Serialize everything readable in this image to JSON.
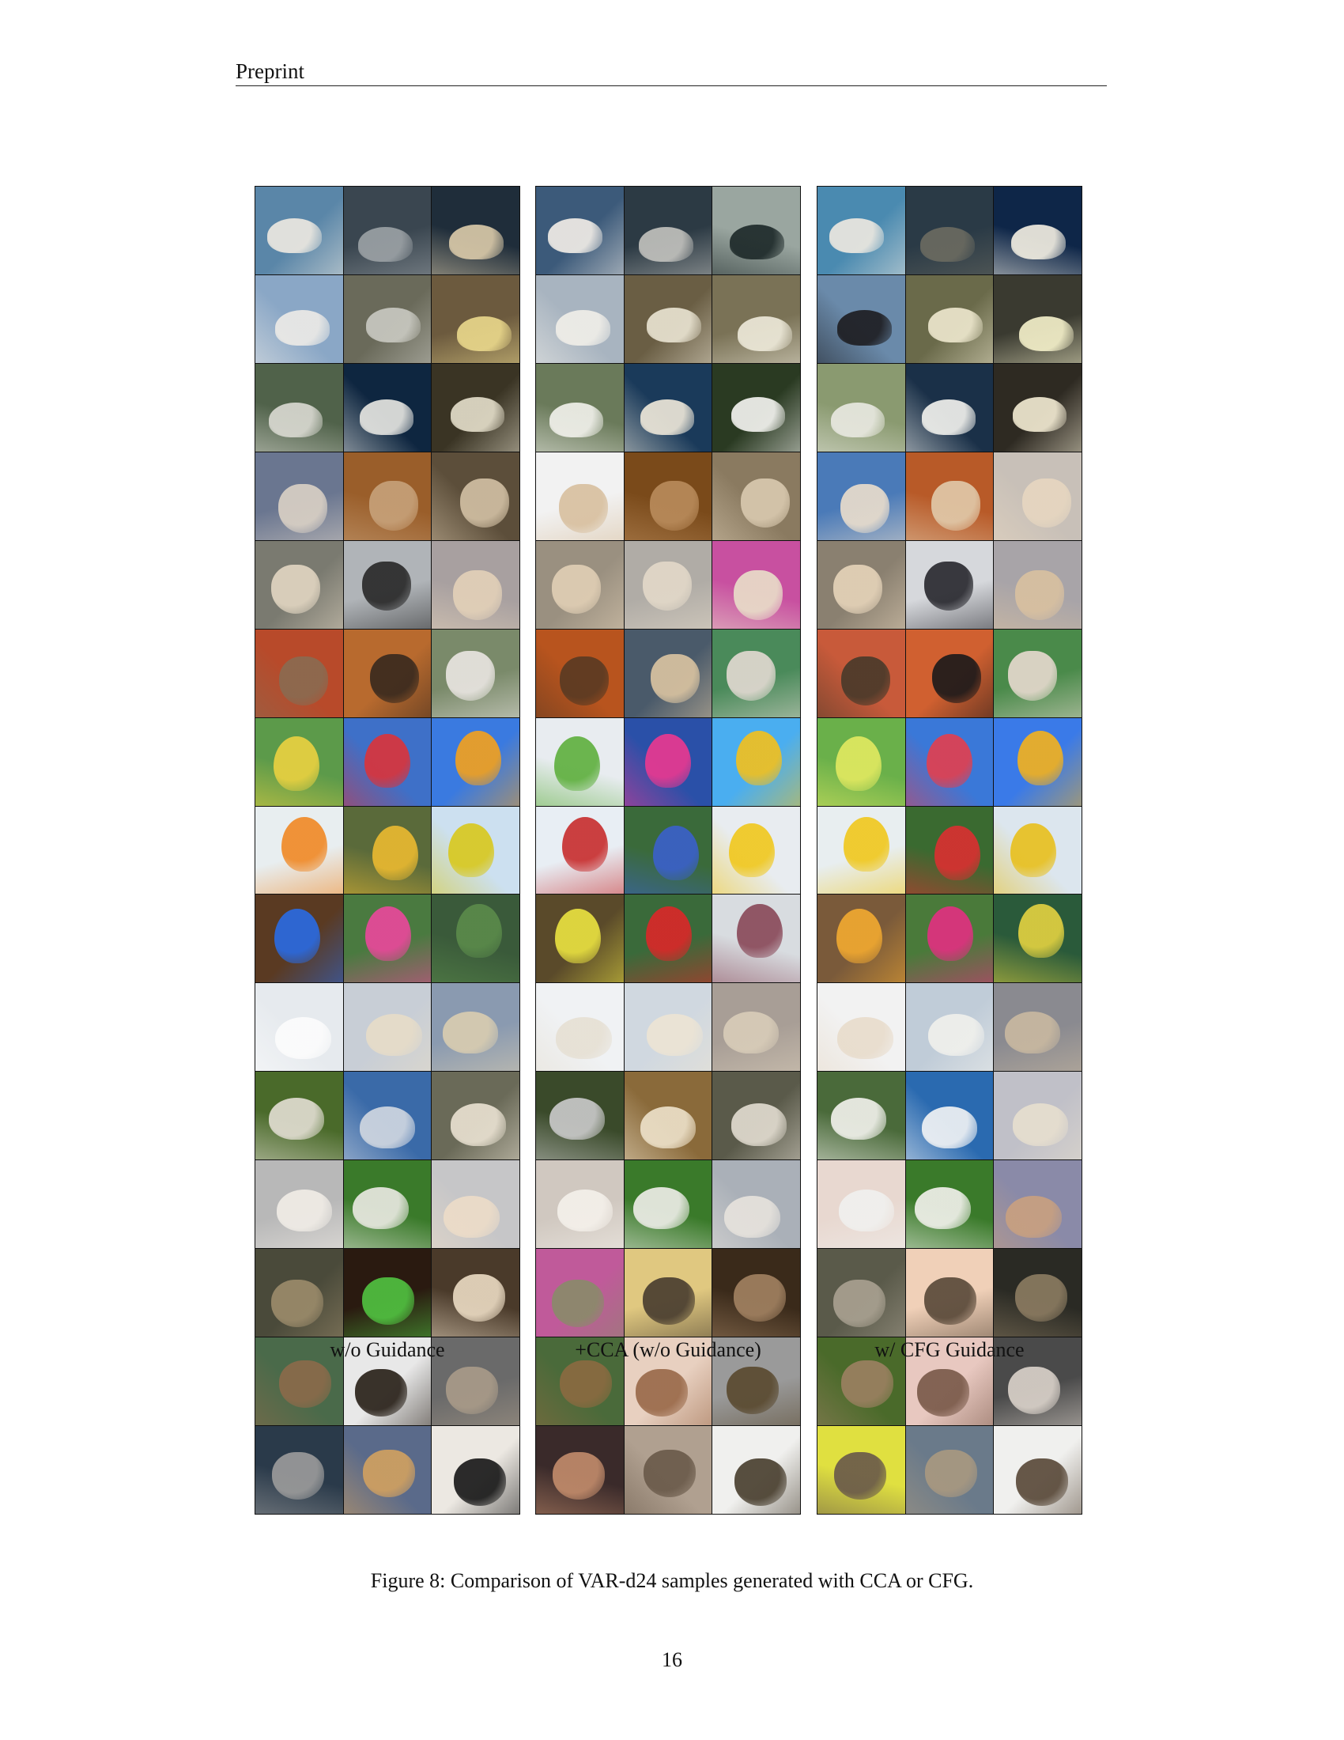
{
  "header": {
    "running_head": "Preprint"
  },
  "figure": {
    "panels": [
      {
        "caption": "w/o Guidance",
        "tiles": [
          [
            "#5a86a8",
            "#ece8e0",
            "albatross"
          ],
          [
            "#3a4650",
            "#9aa0a4",
            "albatross"
          ],
          [
            "#1f2d3a",
            "#d8c8a8",
            "albatross"
          ],
          [
            "#8aa7c6",
            "#eceae6",
            "albatross"
          ],
          [
            "#6a6a5a",
            "#c8c8c0",
            "albatross"
          ],
          [
            "#6c5a3e",
            "#e8d68a",
            "albatross"
          ],
          [
            "#50624a",
            "#d8d8d0",
            "albatross"
          ],
          [
            "#0e2640",
            "#e4e4e0",
            "albatross"
          ],
          [
            "#3a3424",
            "#e2dcc8",
            "albatross"
          ],
          [
            "#6a7690",
            "#d8cfc4",
            "siamese cat"
          ],
          [
            "#9a5e2a",
            "#c6a078",
            "siamese cat"
          ],
          [
            "#5c4e3a",
            "#d0bea2",
            "siamese cat"
          ],
          [
            "#7a7a70",
            "#e0d4c0",
            "siamese cat"
          ],
          [
            "#b0b4b8",
            "#2a2a2a",
            "siamese cat"
          ],
          [
            "#a8a0a0",
            "#e2d0b8",
            "siamese cat"
          ],
          [
            "#b84a2a",
            "#8a6a50",
            "siamese cat"
          ],
          [
            "#b86a2e",
            "#3a2a1e",
            "siamese cat"
          ],
          [
            "#7a8a6a",
            "#e8e4e0",
            "siamese cat"
          ],
          [
            "#5c9a4a",
            "#e8d040",
            "hot-air balloon"
          ],
          [
            "#3e70c8",
            "#d8343c",
            "hot-air balloon"
          ],
          [
            "#3a7ae0",
            "#f0a020",
            "hot-air balloon"
          ],
          [
            "#e8eef0",
            "#f08a28",
            "hot-air balloon"
          ],
          [
            "#5a6a3a",
            "#e8b830",
            "hot-air balloon"
          ],
          [
            "#cce0f0",
            "#d8c820",
            "hot-air balloon"
          ],
          [
            "#5a3a22",
            "#2a6ae0",
            "hot-air balloon"
          ],
          [
            "#4a7a40",
            "#e8489a",
            "hot-air balloon"
          ],
          [
            "#3a5a3a",
            "#5a8a4a",
            "hot-air balloon"
          ],
          [
            "#e6eaee",
            "#fcfcfc",
            "white wolf"
          ],
          [
            "#c8ced6",
            "#e6dcc8",
            "white wolf"
          ],
          [
            "#8a9ab0",
            "#d8ccb0",
            "white wolf"
          ],
          [
            "#4a6a2a",
            "#e0dcd0",
            "white wolf"
          ],
          [
            "#3a6aa8",
            "#cfd6e0",
            "white wolf"
          ],
          [
            "#6a6a58",
            "#e8e0d0",
            "white wolf"
          ],
          [
            "#b8b8b8",
            "#f0ece6",
            "white wolf"
          ],
          [
            "#3a7a2a",
            "#e8e8e0",
            "white wolf"
          ],
          [
            "#c6c6c8",
            "#ecdcc8",
            "white wolf"
          ],
          [
            "#4a4a3a",
            "#9a8a6a",
            "tabby cat"
          ],
          [
            "#2a1a10",
            "#50c040",
            "tabby cat"
          ],
          [
            "#4a3a2a",
            "#e8d8c0",
            "tabby cat"
          ],
          [
            "#4a6a4a",
            "#8a6a4a",
            "tabby cat"
          ],
          [
            "#e8e8e8",
            "#2a221a",
            "tabby cat"
          ],
          [
            "#6a6a6a",
            "#a89a88",
            "tabby cat"
          ],
          [
            "#2a3a4a",
            "#9a9a9a",
            "tabby cat"
          ],
          [
            "#5a6a8a",
            "#d0a060",
            "tabby cat"
          ],
          [
            "#ece8e2",
            "#1a1a1a",
            "tabby cat"
          ]
        ]
      },
      {
        "caption": "+CCA (w/o Guidance)",
        "tiles": [
          [
            "#3c5a7a",
            "#f0ece6",
            "albatross"
          ],
          [
            "#2c3a44",
            "#c0c0bc",
            "albatross"
          ],
          [
            "#9aa6a0",
            "#1e2a2a",
            "albatross"
          ],
          [
            "#a8b4c0",
            "#f0eee8",
            "albatross"
          ],
          [
            "#6a5e44",
            "#e8e2d0",
            "albatross"
          ],
          [
            "#7a7256",
            "#ece8d8",
            "albatross"
          ],
          [
            "#6a7a5a",
            "#f0f0ea",
            "albatross"
          ],
          [
            "#1a3a5a",
            "#ece6d8",
            "albatross"
          ],
          [
            "#2a3a22",
            "#f2f2ee",
            "albatross"
          ],
          [
            "#f2f2f2",
            "#d8c0a0",
            "siamese cat"
          ],
          [
            "#7a4a1a",
            "#b88a5a",
            "siamese cat"
          ],
          [
            "#8a7a60",
            "#d8c8ae",
            "siamese cat"
          ],
          [
            "#9a9080",
            "#e0ceb4",
            "siamese cat"
          ],
          [
            "#b0aca6",
            "#e2d8c8",
            "siamese cat"
          ],
          [
            "#c850a0",
            "#e8dcc8",
            "siamese cat"
          ],
          [
            "#b8541e",
            "#5a3a22",
            "siamese cat"
          ],
          [
            "#4a5a6a",
            "#d8c2a0",
            "siamese cat"
          ],
          [
            "#4a8a5a",
            "#e0d8d0",
            "siamese cat"
          ],
          [
            "#e8ecf0",
            "#60b040",
            "hot-air balloon"
          ],
          [
            "#2a50a8",
            "#e83890",
            "hot-air balloon"
          ],
          [
            "#4aaef0",
            "#f0c020",
            "hot-air balloon"
          ],
          [
            "#e8eef4",
            "#c83030",
            "hot-air balloon"
          ],
          [
            "#3a6a3a",
            "#3a60c8",
            "hot-air balloon"
          ],
          [
            "#e8ecf0",
            "#f0c820",
            "hot-air balloon"
          ],
          [
            "#5a4a2a",
            "#e8e040",
            "hot-air balloon"
          ],
          [
            "#3a6a3a",
            "#d82828",
            "hot-air balloon"
          ],
          [
            "#d8dce0",
            "#8a4a5a",
            "hot-air balloon"
          ],
          [
            "#f0f2f4",
            "#e6e0d4",
            "white wolf"
          ],
          [
            "#d0d8e0",
            "#ece4d4",
            "white wolf"
          ],
          [
            "#a89e96",
            "#d8ccb8",
            "white wolf"
          ],
          [
            "#3a4a2a",
            "#c8c8c8",
            "white wolf"
          ],
          [
            "#8a6a3a",
            "#ece0c8",
            "white wolf"
          ],
          [
            "#5a5a4a",
            "#e0dace",
            "white wolf"
          ],
          [
            "#d0c8c0",
            "#f4f0ea",
            "white wolf"
          ],
          [
            "#3a7a2a",
            "#ecece6",
            "white wolf"
          ],
          [
            "#aab0b8",
            "#e6e2dc",
            "white wolf"
          ],
          [
            "#c05a9a",
            "#8a8a6a",
            "tabby cat"
          ],
          [
            "#e0c880",
            "#4a3e30",
            "tabby cat"
          ],
          [
            "#3a2a1a",
            "#a08060",
            "tabby cat"
          ],
          [
            "#4a6a3a",
            "#8a6a40",
            "tabby cat"
          ],
          [
            "#e8d0c0",
            "#9a6a4a",
            "tabby cat"
          ],
          [
            "#9a9a9a",
            "#5a4a30",
            "tabby cat"
          ],
          [
            "#3a2a2a",
            "#c08a6a",
            "tabby cat"
          ],
          [
            "#b0a090",
            "#6a5a4a",
            "tabby cat"
          ],
          [
            "#f0f0ee",
            "#4a4030",
            "tabby cat"
          ]
        ]
      },
      {
        "caption": "w/ CFG Guidance",
        "tiles": [
          [
            "#4a8ab0",
            "#ece8e0",
            "albatross"
          ],
          [
            "#2a3a46",
            "#6a6a60",
            "albatross"
          ],
          [
            "#0e2648",
            "#f0ece0",
            "albatross"
          ],
          [
            "#6a8aaa",
            "#1e1e22",
            "albatross"
          ],
          [
            "#6a6a4a",
            "#ece6cc",
            "albatross"
          ],
          [
            "#3a3a30",
            "#f2eec8",
            "albatross"
          ],
          [
            "#8a9a70",
            "#e8e8e0",
            "albatross"
          ],
          [
            "#1a3048",
            "#f0f0ec",
            "albatross"
          ],
          [
            "#2e2a22",
            "#f0e8d0",
            "albatross"
          ],
          [
            "#4a7ab8",
            "#e8dccc",
            "siamese cat"
          ],
          [
            "#b85a28",
            "#e0c8a8",
            "siamese cat"
          ],
          [
            "#c8c0b8",
            "#e6d6c0",
            "siamese cat"
          ],
          [
            "#8a8070",
            "#e4d2b8",
            "siamese cat"
          ],
          [
            "#d6d8dc",
            "#2a2a30",
            "siamese cat"
          ],
          [
            "#a8a4a8",
            "#d8c0a0",
            "siamese cat"
          ],
          [
            "#c85a3a",
            "#4a3a2a",
            "siamese cat"
          ],
          [
            "#d06030",
            "#1e1a1a",
            "siamese cat"
          ],
          [
            "#4a8a4a",
            "#e4d8cc",
            "siamese cat"
          ],
          [
            "#6ab04a",
            "#e0e860",
            "hot-air balloon"
          ],
          [
            "#3a78d8",
            "#e04050",
            "hot-air balloon"
          ],
          [
            "#3a7ae8",
            "#f0b020",
            "hot-air balloon"
          ],
          [
            "#e8eef0",
            "#f0c820",
            "hot-air balloon"
          ],
          [
            "#3a6a30",
            "#d83030",
            "hot-air balloon"
          ],
          [
            "#dce6ee",
            "#e8c020",
            "hot-air balloon"
          ],
          [
            "#7a5a3a",
            "#f0a830",
            "hot-air balloon"
          ],
          [
            "#4a7a3a",
            "#e03080",
            "hot-air balloon"
          ],
          [
            "#2a5a3a",
            "#e0d040",
            "hot-air balloon"
          ],
          [
            "#f2f2f2",
            "#e8dccc",
            "white wolf"
          ],
          [
            "#c0ccd8",
            "#f0f0ec",
            "white wolf"
          ],
          [
            "#8a8a90",
            "#c8b8a0",
            "white wolf"
          ],
          [
            "#4a6a3a",
            "#f0f0ea",
            "white wolf"
          ],
          [
            "#2a6ab0",
            "#f0f2f4",
            "white wolf"
          ],
          [
            "#c0c0c8",
            "#e6dece",
            "white wolf"
          ],
          [
            "#e8d8d0",
            "#f0f0ee",
            "white wolf"
          ],
          [
            "#3a7a2a",
            "#f0f0ea",
            "white wolf"
          ],
          [
            "#8a8aa8",
            "#c8a080",
            "white wolf"
          ],
          [
            "#5a5a4a",
            "#a8a090",
            "tabby cat"
          ],
          [
            "#f0d0b8",
            "#5a4a3a",
            "tabby cat"
          ],
          [
            "#2a2a24",
            "#8a7a60",
            "tabby cat"
          ],
          [
            "#4a6a2a",
            "#9a8060",
            "tabby cat"
          ],
          [
            "#e8c8c0",
            "#7a5a4a",
            "tabby cat"
          ],
          [
            "#4a4a4a",
            "#d8d0c8",
            "tabby cat"
          ],
          [
            "#e0e040",
            "#6a5a4a",
            "tabby cat"
          ],
          [
            "#6a7a8a",
            "#a89880",
            "tabby cat"
          ],
          [
            "#f0f0ee",
            "#5a4a3a",
            "tabby cat"
          ]
        ]
      }
    ],
    "caption": "Figure 8: Comparison of VAR-d24 samples generated with CCA or CFG."
  },
  "page_number": "16"
}
